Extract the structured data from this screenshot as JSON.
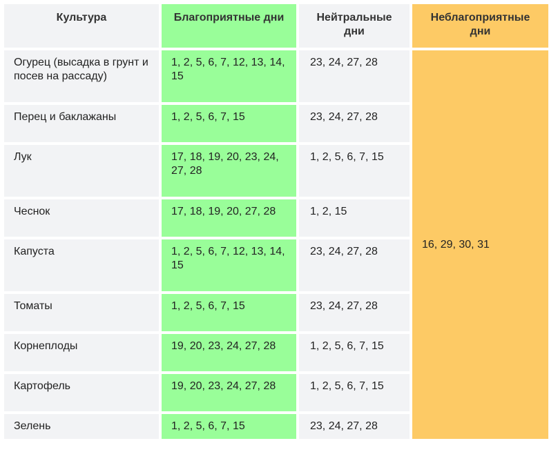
{
  "headers": {
    "crop": "Культура",
    "favorable": "Благоприятные дни",
    "neutral": "Нейтральные дни",
    "unfavorable": "Неблагоприятные дни"
  },
  "rows": [
    {
      "crop": "Огурец (высадка в грунт и посев на рассаду)",
      "favorable": "1, 2, 5, 6, 7, 12, 13, 14, 15",
      "neutral": "23, 24, 27, 28"
    },
    {
      "crop": "Перец и баклажаны",
      "favorable": "1, 2, 5, 6, 7, 15",
      "neutral": "23, 24, 27, 28"
    },
    {
      "crop": "Лук",
      "favorable": "17, 18, 19, 20, 23, 24, 27, 28",
      "neutral": "1, 2, 5, 6, 7, 15"
    },
    {
      "crop": "Чеснок",
      "favorable": "17, 18, 19, 20, 27, 28",
      "neutral": "1, 2, 15"
    },
    {
      "crop": "Капуста",
      "favorable": "1, 2, 5, 6, 7, 12, 13, 14, 15",
      "neutral": "23, 24, 27, 28"
    },
    {
      "crop": "Томаты",
      "favorable": "1, 2, 5, 6, 7, 15",
      "neutral": "23, 24, 27, 28"
    },
    {
      "crop": "Корнеплоды",
      "favorable": "19, 20, 23, 24, 27, 28",
      "neutral": "1, 2, 5, 6, 7, 15"
    },
    {
      "crop": "Картофель",
      "favorable": "19, 20, 23, 24, 27, 28",
      "neutral": "1, 2, 5, 6, 7, 15"
    },
    {
      "crop": "Зелень",
      "favorable": "1, 2, 5, 6, 7, 15",
      "neutral": "23, 24, 27, 28"
    }
  ],
  "unfavorable_all": "16, 29, 30, 31",
  "colors": {
    "favorable": "#99fe99",
    "unfavorable": "#fdca65",
    "cell": "#f2f3f5"
  }
}
